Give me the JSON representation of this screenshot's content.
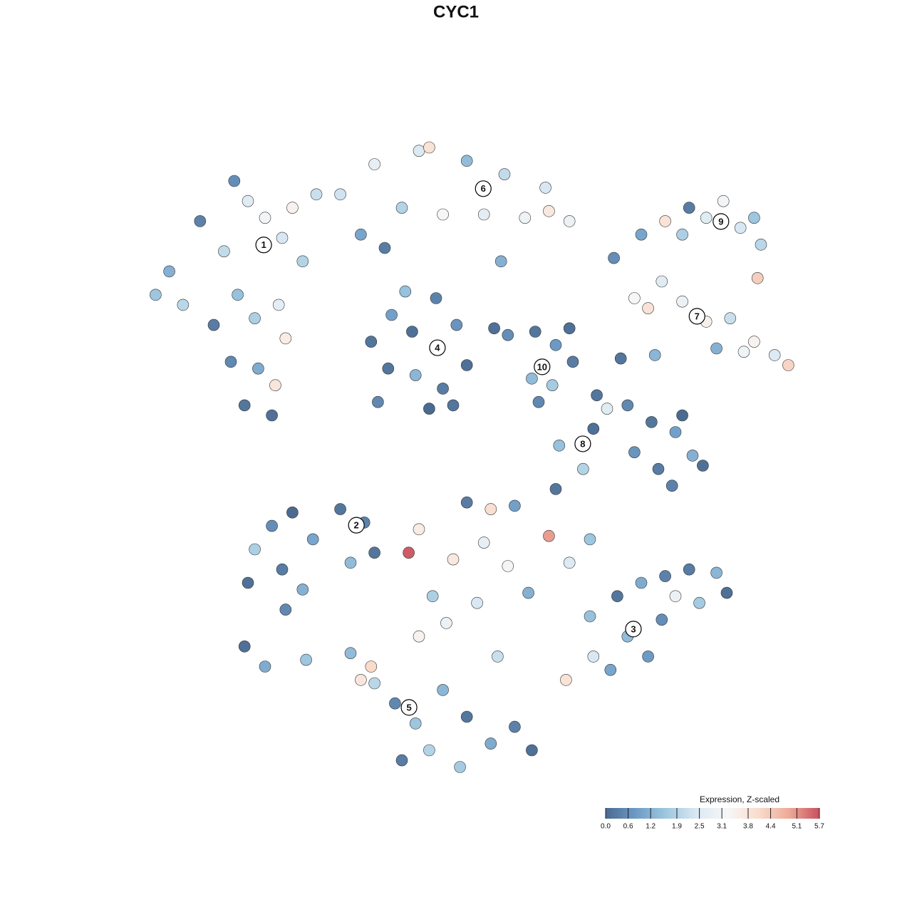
{
  "chart_data": {
    "type": "scatter",
    "title": "CYC1",
    "xlim": [
      -10,
      10
    ],
    "ylim": [
      -10,
      10
    ],
    "x": [
      -8.8,
      -7.9,
      -7.2,
      -6.5,
      -6.0,
      -5.5,
      -5.2,
      -6.8,
      -7.5,
      -6.3,
      -5.6,
      -5.4,
      -7.0,
      -6.2,
      -6.6,
      -5.8,
      -8.4,
      -9.2,
      -4.9,
      -4.5,
      -6.9,
      -5.7,
      -3.8,
      -2.8,
      -2.0,
      -1.5,
      -0.8,
      -0.1,
      0.4,
      1.0,
      1.6,
      2.2,
      2.9,
      -3.2,
      -1.2,
      2.3,
      0.9,
      -2.5,
      -2.9,
      -2.3,
      -1.7,
      -1.0,
      -0.4,
      -0.1,
      -0.8,
      -1.6,
      -2.4,
      -2.7,
      -1.2,
      -0.5,
      -1.9,
      0.7,
      1.1,
      1.9,
      2.5,
      1.8,
      2.4,
      2.0,
      2.9,
      3.0,
      4.2,
      4.8,
      5.6,
      6.2,
      6.9,
      7.6,
      8.3,
      8.9,
      9.3,
      5.2,
      7.2,
      8.0,
      4.4,
      5.4,
      4.0,
      5.0,
      5.7,
      6.2,
      6.9,
      7.4,
      7.9,
      8.3,
      8.5,
      6.4,
      8.4,
      3.7,
      3.6,
      4.6,
      5.3,
      6.0,
      6.5,
      5.5,
      4.8,
      6.8,
      5.9,
      2.6,
      3.3,
      6.2,
      -5.8,
      -5.2,
      -4.6,
      -3.8,
      -3.1,
      -6.3,
      -5.5,
      -6.5,
      -4.9,
      -5.4,
      -2.8,
      -3.5,
      -6.6,
      -6.0,
      -4.8,
      -1.8,
      -1.5,
      -0.5,
      0.4,
      1.1,
      2.3,
      2.9,
      -0.1,
      1.3,
      2.5,
      0.6,
      -1.1,
      0.2,
      1.7,
      3.5,
      -0.7,
      3.5,
      4.3,
      5.0,
      5.7,
      6.4,
      7.2,
      7.5,
      6.7,
      5.6,
      4.6,
      3.6,
      4.1,
      2.8,
      6.0,
      5.2,
      -3.5,
      -2.8,
      -2.2,
      -1.6,
      -0.8,
      -0.1,
      0.6,
      1.3,
      -1.2,
      -2.0,
      -0.3,
      1.8,
      -3.2,
      -2.9,
      0.8,
      -1.5
    ],
    "y": [
      5.3,
      6.8,
      5.9,
      7.4,
      6.9,
      6.3,
      7.2,
      4.6,
      3.7,
      3.9,
      4.3,
      3.3,
      2.6,
      2.4,
      1.3,
      1.0,
      4.3,
      4.6,
      5.6,
      7.6,
      8.0,
      1.9,
      7.6,
      8.5,
      7.2,
      8.9,
      7.0,
      8.6,
      7.0,
      8.2,
      6.9,
      7.8,
      6.8,
      6.4,
      9.0,
      7.1,
      5.6,
      6.0,
      3.2,
      4.0,
      3.5,
      4.5,
      3.7,
      2.5,
      1.8,
      2.2,
      2.4,
      1.4,
      1.2,
      1.3,
      4.7,
      3.6,
      3.4,
      3.5,
      3.1,
      2.1,
      1.9,
      1.4,
      3.6,
      2.6,
      5.7,
      4.5,
      5.0,
      4.4,
      3.8,
      3.9,
      3.2,
      2.8,
      2.5,
      4.2,
      3.0,
      2.9,
      2.7,
      2.8,
      1.2,
      6.4,
      6.8,
      6.4,
      6.9,
      7.4,
      6.6,
      6.9,
      6.1,
      7.2,
      5.1,
      1.6,
      0.6,
      1.3,
      0.8,
      0.5,
      -0.2,
      -0.6,
      -0.1,
      -0.5,
      -1.1,
      0.1,
      -0.6,
      1.0,
      -2.3,
      -1.9,
      -2.7,
      -1.8,
      -2.2,
      -3.0,
      -3.6,
      -4.0,
      -4.2,
      -4.8,
      -3.1,
      -3.4,
      -5.9,
      -6.5,
      -6.3,
      -3.1,
      -2.4,
      -3.3,
      -2.8,
      -3.5,
      -2.6,
      -3.4,
      -1.6,
      -1.7,
      -1.2,
      -1.8,
      -4.4,
      -4.6,
      -4.3,
      -2.7,
      -5.2,
      -5.0,
      -4.4,
      -4.0,
      -3.8,
      -3.6,
      -3.7,
      -4.3,
      -4.6,
      -5.1,
      -5.6,
      -6.2,
      -6.6,
      -6.9,
      -4.4,
      -6.2,
      -6.1,
      -7.0,
      -7.6,
      -8.2,
      -7.2,
      -8.0,
      -8.8,
      -8.3,
      -9.0,
      -9.3,
      -9.5,
      -9.0,
      -6.9,
      -6.5,
      -6.2,
      -5.6
    ],
    "values": [
      1.2,
      0.4,
      2.1,
      2.6,
      3.1,
      2.4,
      3.4,
      1.5,
      0.3,
      1.8,
      2.7,
      3.6,
      0.5,
      1.1,
      0.2,
      0.1,
      2.0,
      1.6,
      1.9,
      2.2,
      0.6,
      3.8,
      2.3,
      2.8,
      1.9,
      2.5,
      3.2,
      1.4,
      2.7,
      2.1,
      3.0,
      2.4,
      2.9,
      1.0,
      3.9,
      3.7,
      1.2,
      0.3,
      0.2,
      0.9,
      0.1,
      0.4,
      0.7,
      0.1,
      0.3,
      1.3,
      0.2,
      0.5,
      0.0,
      0.2,
      1.5,
      0.1,
      0.6,
      0.2,
      0.8,
      1.4,
      1.7,
      0.5,
      0.1,
      0.3,
      0.6,
      3.3,
      2.6,
      2.9,
      3.5,
      2.2,
      3.4,
      2.5,
      4.2,
      3.9,
      1.2,
      3.0,
      0.2,
      1.3,
      2.6,
      1.0,
      3.9,
      1.8,
      2.6,
      3.1,
      2.4,
      1.6,
      2.0,
      0.3,
      4.3,
      0.2,
      0.1,
      0.5,
      0.2,
      0.9,
      1.2,
      0.3,
      0.7,
      0.1,
      0.4,
      1.5,
      1.9,
      0.0,
      0.6,
      0.0,
      1.0,
      0.2,
      0.4,
      1.8,
      0.3,
      0.1,
      1.2,
      0.5,
      0.2,
      1.4,
      0.1,
      1.1,
      1.6,
      5.6,
      3.6,
      3.7,
      2.8,
      3.1,
      5.0,
      2.5,
      0.3,
      0.9,
      0.2,
      4.0,
      1.8,
      2.4,
      1.2,
      1.6,
      2.9,
      1.5,
      0.2,
      1.1,
      0.4,
      0.3,
      1.3,
      0.1,
      1.7,
      0.6,
      1.4,
      2.4,
      1.0,
      3.9,
      2.9,
      0.8,
      1.4,
      2.0,
      0.5,
      1.6,
      1.3,
      0.2,
      1.1,
      0.4,
      1.9,
      0.3,
      1.7,
      0.1,
      3.8,
      4.1,
      2.2,
      3.4
    ],
    "clusters": [
      {
        "label": "1",
        "x": -6.04,
        "y": 6.09
      },
      {
        "label": "2",
        "x": -3.33,
        "y": -2.28
      },
      {
        "label": "3",
        "x": 4.77,
        "y": -5.38
      },
      {
        "label": "4",
        "x": -0.96,
        "y": 3.02
      },
      {
        "label": "5",
        "x": -1.79,
        "y": -7.72
      },
      {
        "label": "6",
        "x": 0.38,
        "y": 7.77
      },
      {
        "label": "7",
        "x": 6.63,
        "y": 3.96
      },
      {
        "label": "8",
        "x": 3.29,
        "y": 0.15
      },
      {
        "label": "9",
        "x": 7.33,
        "y": 6.79
      },
      {
        "label": "10",
        "x": 2.1,
        "y": 2.45
      }
    ],
    "colorbar_title": "Expression, Z-scaled",
    "colorbar_ticks": [
      {
        "value": 0,
        "label": "0.0"
      },
      0.6,
      1.2,
      1.9,
      2.5,
      3.1,
      3.8,
      4.4,
      5.1,
      5.7
    ],
    "colors": [
      "#4b6a90",
      "#6d9bc6",
      "#9fc8e0",
      "#dbe9f3",
      "#f7f7f7",
      "#f9dccd",
      "#eeaa98",
      "#c9505e"
    ]
  }
}
